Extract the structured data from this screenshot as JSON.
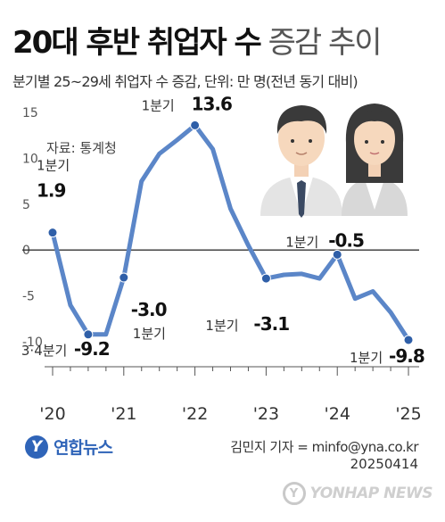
{
  "title": {
    "bold": "20대 후반 취업자 수",
    "light": "증감 추이"
  },
  "subtitle": "분기별 25~29세 취업자 수 증감, 단위: 만 명(전년 동기 대비)",
  "source": "자료: 통계청",
  "publisher": "연합뉴스",
  "credit": "김민지 기자 = minfo@yna.co.kr",
  "date": "20250414",
  "watermark": "YONHAP NEWS",
  "colors": {
    "line": "#5b86c8",
    "point": "#2f5fa8",
    "axis": "#333333",
    "grid": "#dddddd"
  },
  "chart_data": {
    "type": "line",
    "ylim": [
      -10,
      15
    ],
    "y_ticks": [
      15,
      10,
      5,
      0,
      -5,
      -10
    ],
    "x_ticks": [
      "'20",
      "'21",
      "'22",
      "'23",
      "'24",
      "'25"
    ],
    "x_tick_positions": [
      2020,
      2021,
      2022,
      2023,
      2024,
      2025
    ],
    "xlim": [
      2019.95,
      2025.15
    ],
    "grid": false,
    "series": [
      {
        "points": [
          [
            2020.0,
            1.9
          ],
          [
            2020.25,
            -6.0
          ],
          [
            2020.5,
            -9.2
          ],
          [
            2020.75,
            -9.2
          ],
          [
            2021.0,
            -3.0
          ],
          [
            2021.25,
            7.5
          ],
          [
            2021.5,
            10.5
          ],
          [
            2021.75,
            12.0
          ],
          [
            2022.0,
            13.6
          ],
          [
            2022.25,
            11.0
          ],
          [
            2022.5,
            4.5
          ],
          [
            2022.75,
            0.5
          ],
          [
            2023.0,
            -3.1
          ],
          [
            2023.25,
            -2.7
          ],
          [
            2023.5,
            -2.6
          ],
          [
            2023.75,
            -3.1
          ],
          [
            2024.0,
            -0.5
          ],
          [
            2024.25,
            -5.3
          ],
          [
            2024.5,
            -4.5
          ],
          [
            2024.75,
            -6.8
          ],
          [
            2025.0,
            -9.8
          ]
        ]
      }
    ],
    "annotations": [
      {
        "x": 2020.0,
        "y": 1.9,
        "label": "1분기",
        "value": "1.9"
      },
      {
        "x": 2020.5,
        "y": -9.2,
        "label": "3·4분기",
        "value": "-9.2"
      },
      {
        "x": 2021.0,
        "y": -3.0,
        "label": "1분기",
        "value": "-3.0"
      },
      {
        "x": 2022.0,
        "y": 13.6,
        "label": "1분기",
        "value": "13.6"
      },
      {
        "x": 2023.0,
        "y": -3.1,
        "label": "1분기",
        "value": "-3.1"
      },
      {
        "x": 2024.0,
        "y": -0.5,
        "label": "1분기",
        "value": "-0.5"
      },
      {
        "x": 2025.0,
        "y": -9.8,
        "label": "1분기",
        "value": "-9.8"
      }
    ]
  }
}
